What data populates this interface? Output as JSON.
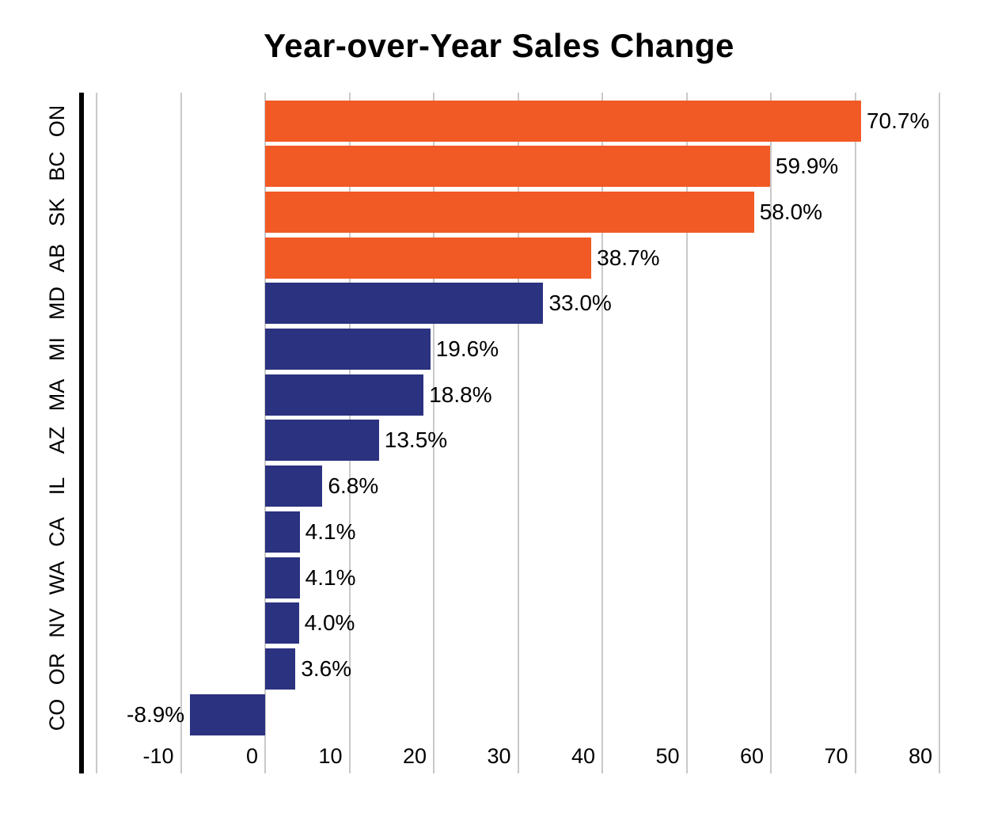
{
  "chart_data": {
    "type": "bar",
    "orientation": "horizontal",
    "title": "Year-over-Year Sales Change",
    "xlabel": "",
    "ylabel": "",
    "categories": [
      "ON",
      "BC",
      "SK",
      "AB",
      "MD",
      "MI",
      "MA",
      "AZ",
      "IL",
      "CA",
      "WA",
      "NV",
      "OR",
      "CO"
    ],
    "values": [
      70.7,
      59.9,
      58.0,
      38.7,
      33.0,
      19.6,
      18.8,
      13.5,
      6.8,
      4.1,
      4.1,
      4.0,
      3.6,
      -8.9
    ],
    "value_labels": [
      "70.7%",
      "59.9%",
      "58.0%",
      "38.7%",
      "33.0%",
      "19.6%",
      "18.8%",
      "13.5%",
      "6.8%",
      "4.1%",
      "4.1%",
      "4.0%",
      "3.6%",
      "-8.9%"
    ],
    "bar_colors": [
      "#F15A25",
      "#F15A25",
      "#F15A25",
      "#F15A25",
      "#2B3280",
      "#2B3280",
      "#2B3280",
      "#2B3280",
      "#2B3280",
      "#2B3280",
      "#2B3280",
      "#2B3280",
      "#2B3280",
      "#2B3280"
    ],
    "x_ticks": [
      -10,
      0,
      10,
      20,
      30,
      40,
      50,
      60,
      70,
      80
    ],
    "x_gridlines": [
      -20,
      -10,
      0,
      10,
      20,
      30,
      40,
      50,
      60,
      70,
      80
    ],
    "xlim": [
      -21.8,
      87
    ],
    "grid": true,
    "legend": false,
    "colors": {
      "orange": "#F15A25",
      "navy": "#2B3280",
      "gridline": "#C9C9C9",
      "axis_line": "#000000",
      "background": "#FFFFFF",
      "text": "#000000"
    }
  }
}
